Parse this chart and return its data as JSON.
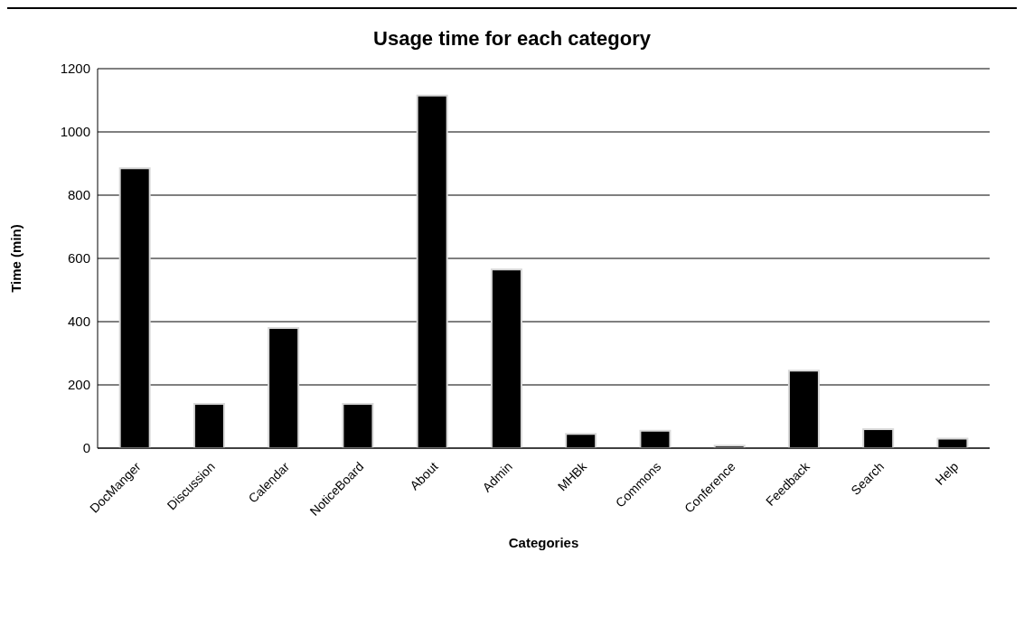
{
  "chart_data": {
    "type": "bar",
    "title": "Usage time for each category",
    "xlabel": "Categories",
    "ylabel": "Time (min)",
    "categories": [
      "DocManger",
      "Discussion",
      "Calendar",
      "NoticeBoard",
      "About",
      "Admin",
      "MHBk",
      "Commons",
      "Conference",
      "Feedback",
      "Search",
      "Help"
    ],
    "values": [
      885,
      140,
      380,
      140,
      1115,
      565,
      45,
      55,
      8,
      245,
      60,
      30
    ],
    "color": "#000000",
    "ylim": [
      0,
      1200
    ],
    "yticks": [
      0,
      200,
      400,
      600,
      800,
      1000,
      1200
    ],
    "grid": "y",
    "legend": false
  }
}
